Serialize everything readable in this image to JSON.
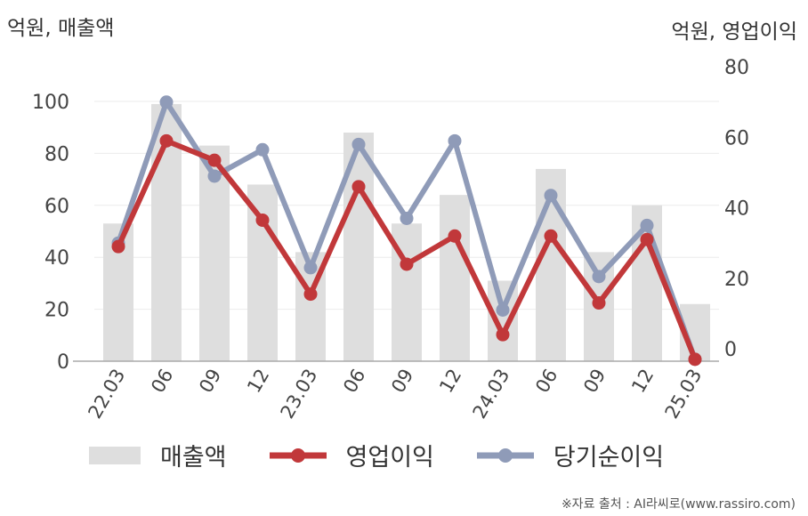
{
  "chart_data": {
    "type": "bar",
    "categories": [
      "22.03",
      "06",
      "09",
      "12",
      "23.03",
      "06",
      "09",
      "12",
      "24.03",
      "06",
      "09",
      "12",
      "25.03"
    ],
    "left_axis_label": "억원, 매출액",
    "right_axis_label": "억원, 영업이익",
    "left_ylim": [
      0,
      100
    ],
    "left_ticks": [
      0,
      20,
      40,
      60,
      80,
      100
    ],
    "right_ylim": [
      -3,
      80
    ],
    "right_ticks": [
      0,
      20,
      40,
      60,
      80
    ],
    "grid": true,
    "legend_position": "bottom",
    "series": [
      {
        "name": "매출액",
        "kind": "bar",
        "axis": "left",
        "color": "#dedede",
        "values": [
          53,
          99,
          83,
          68,
          42,
          88,
          53,
          64,
          31,
          74,
          42,
          60,
          22
        ]
      },
      {
        "name": "영업이익",
        "kind": "line",
        "axis": "right",
        "color": "#c1383a",
        "values": [
          29,
          59,
          53.5,
          36.5,
          15.5,
          46,
          24,
          32,
          4,
          32,
          13,
          31,
          -3
        ]
      },
      {
        "name": "당기순이익",
        "kind": "line",
        "axis": "right",
        "color": "#8f9bb8",
        "values": [
          30,
          70,
          49,
          56.5,
          23,
          58,
          37,
          59,
          11,
          43.5,
          20.5,
          35,
          -3
        ]
      }
    ]
  },
  "source": "※자료 출처 : AI라씨로(www.rassiro.com)"
}
